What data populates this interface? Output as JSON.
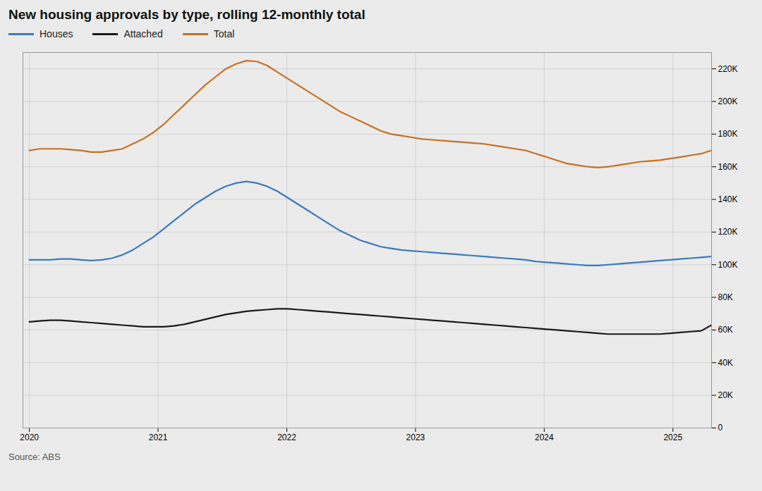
{
  "chart_data": {
    "type": "line",
    "title": "New housing approvals by type, rolling 12-monthly total",
    "source": "Source: ABS",
    "x": [
      2020,
      2020.080303,
      2020.160606,
      2020.240909,
      2020.321212,
      2020.401515,
      2020.481818,
      2020.562121,
      2020.642424,
      2020.722727,
      2020.80303,
      2020.883333,
      2020.963636,
      2021.043939,
      2021.124242,
      2021.204545,
      2021.284848,
      2021.365152,
      2021.445455,
      2021.525758,
      2021.606061,
      2021.686364,
      2021.766667,
      2021.84697,
      2021.927273,
      2022.007576,
      2022.087879,
      2022.168182,
      2022.248485,
      2022.328788,
      2022.409091,
      2022.489394,
      2022.569697,
      2022.65,
      2022.730303,
      2022.810606,
      2022.890909,
      2022.971212,
      2023.051515,
      2023.131818,
      2023.212121,
      2023.292424,
      2023.372727,
      2023.45303,
      2023.533333,
      2023.613636,
      2023.693939,
      2023.774242,
      2023.854545,
      2023.934848,
      2024.015152,
      2024.095455,
      2024.175758,
      2024.256061,
      2024.336364,
      2024.416667,
      2024.49697,
      2024.577273,
      2024.657576,
      2024.737879,
      2024.818182,
      2024.898485,
      2024.978788,
      2025.059091,
      2025.139394,
      2025.219697,
      2025.3
    ],
    "series": [
      {
        "name": "Houses",
        "color": "#3a7abf",
        "values": [
          103000,
          103000,
          103000,
          103500,
          103500,
          103000,
          102500,
          103000,
          104000,
          106000,
          109000,
          113000,
          117000,
          122000,
          127000,
          132000,
          137000,
          141000,
          145000,
          148000,
          150000,
          151000,
          150000,
          148000,
          145000,
          141000,
          137000,
          133000,
          129000,
          125000,
          121000,
          118000,
          115000,
          113000,
          111000,
          110000,
          109000,
          108500,
          108000,
          107500,
          107000,
          106500,
          106000,
          105500,
          105000,
          104500,
          104000,
          103500,
          103000,
          102000,
          101500,
          101000,
          100500,
          100000,
          99500,
          99500,
          100000,
          100500,
          101000,
          101500,
          102000,
          102500,
          103000,
          103500,
          104000,
          104500,
          105000
        ]
      },
      {
        "name": "Attached",
        "color": "#1a1a1a",
        "values": [
          65000,
          65500,
          66000,
          66000,
          65500,
          65000,
          64500,
          64000,
          63500,
          63000,
          62500,
          62000,
          62000,
          62000,
          62500,
          63500,
          65000,
          66500,
          68000,
          69500,
          70500,
          71500,
          72000,
          72500,
          73000,
          73000,
          72500,
          72000,
          71500,
          71000,
          70500,
          70000,
          69500,
          69000,
          68500,
          68000,
          67500,
          67000,
          66500,
          66000,
          65500,
          65000,
          64500,
          64000,
          63500,
          63000,
          62500,
          62000,
          61500,
          61000,
          60500,
          60000,
          59500,
          59000,
          58500,
          58000,
          57500,
          57500,
          57500,
          57500,
          57500,
          57500,
          58000,
          58500,
          59000,
          59500,
          63000
        ]
      },
      {
        "name": "Total",
        "color": "#c87020",
        "values": [
          170000,
          171000,
          171000,
          171000,
          170500,
          170000,
          169000,
          169000,
          170000,
          171000,
          174000,
          177000,
          181000,
          186000,
          192000,
          198000,
          204000,
          210000,
          215000,
          220000,
          223000,
          225000,
          224500,
          222000,
          218000,
          214000,
          210000,
          206000,
          202000,
          198000,
          194000,
          191000,
          188000,
          185000,
          182000,
          180000,
          179000,
          178000,
          177000,
          176500,
          176000,
          175500,
          175000,
          174500,
          174000,
          173000,
          172000,
          171000,
          170000,
          168000,
          166000,
          164000,
          162000,
          161000,
          160000,
          159500,
          160000,
          161000,
          162000,
          163000,
          163500,
          164000,
          165000,
          166000,
          167000,
          168000,
          170000
        ]
      }
    ],
    "xlim": [
      2019.95,
      2025.3
    ],
    "xticks": [
      2020,
      2021,
      2022,
      2023,
      2024,
      2025
    ],
    "ylim": [
      0,
      230000
    ],
    "yticks": [
      0,
      {
        "value": 20000,
        "label": "20K"
      },
      {
        "value": 40000,
        "label": "40K"
      },
      {
        "value": 60000,
        "label": "60K"
      },
      {
        "value": 80000,
        "label": "80K"
      },
      {
        "value": 100000,
        "label": "100K"
      },
      {
        "value": 120000,
        "label": "120K"
      },
      {
        "value": 140000,
        "label": "140K"
      },
      {
        "value": 160000,
        "label": "160K"
      },
      {
        "value": 180000,
        "label": "180K"
      },
      {
        "value": 200000,
        "label": "200K"
      },
      {
        "value": 220000,
        "label": "220K"
      }
    ],
    "grid": true,
    "legend": "top"
  }
}
